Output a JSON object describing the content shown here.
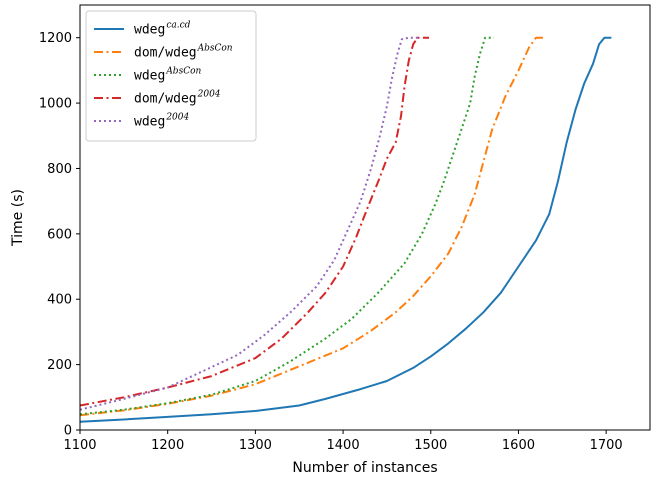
{
  "chart_data": {
    "type": "line",
    "xlabel": "Number of instances",
    "ylabel": "Time (s)",
    "xlim": [
      1100,
      1750
    ],
    "ylim": [
      0,
      1300
    ],
    "xticks": [
      "1100",
      "1200",
      "1300",
      "1400",
      "1500",
      "1600",
      "1700"
    ],
    "yticks": [
      "0",
      "200",
      "400",
      "600",
      "800",
      "1000",
      "1200"
    ],
    "grid": false,
    "legend_position": "top-left",
    "series": [
      {
        "name": "wdeg^{ca.cd}",
        "legend_base": "wdeg",
        "legend_sup": "ca.cd",
        "color": "#1f77b4",
        "style": "solid",
        "points": [
          [
            1100,
            25
          ],
          [
            1150,
            32
          ],
          [
            1200,
            40
          ],
          [
            1250,
            48
          ],
          [
            1300,
            58
          ],
          [
            1350,
            75
          ],
          [
            1380,
            95
          ],
          [
            1420,
            125
          ],
          [
            1450,
            150
          ],
          [
            1480,
            190
          ],
          [
            1500,
            225
          ],
          [
            1520,
            265
          ],
          [
            1540,
            310
          ],
          [
            1560,
            360
          ],
          [
            1580,
            420
          ],
          [
            1600,
            500
          ],
          [
            1620,
            580
          ],
          [
            1635,
            660
          ],
          [
            1645,
            760
          ],
          [
            1655,
            880
          ],
          [
            1665,
            980
          ],
          [
            1675,
            1060
          ],
          [
            1685,
            1120
          ],
          [
            1692,
            1180
          ],
          [
            1698,
            1200
          ],
          [
            1706,
            1200
          ]
        ]
      },
      {
        "name": "dom/wdeg^{AbsCon}",
        "legend_base": "dom/wdeg",
        "legend_sup": "AbsCon",
        "color": "#ff7f0e",
        "style": "dashdot",
        "points": [
          [
            1100,
            45
          ],
          [
            1150,
            60
          ],
          [
            1200,
            80
          ],
          [
            1250,
            105
          ],
          [
            1300,
            140
          ],
          [
            1350,
            195
          ],
          [
            1400,
            250
          ],
          [
            1430,
            300
          ],
          [
            1460,
            360
          ],
          [
            1480,
            410
          ],
          [
            1500,
            470
          ],
          [
            1520,
            540
          ],
          [
            1535,
            620
          ],
          [
            1550,
            720
          ],
          [
            1560,
            820
          ],
          [
            1570,
            920
          ],
          [
            1585,
            1020
          ],
          [
            1600,
            1100
          ],
          [
            1612,
            1170
          ],
          [
            1620,
            1200
          ],
          [
            1630,
            1200
          ]
        ]
      },
      {
        "name": "wdeg^{AbsCon}",
        "legend_base": "wdeg",
        "legend_sup": "AbsCon",
        "color": "#2ca02c",
        "style": "dotted",
        "points": [
          [
            1100,
            48
          ],
          [
            1150,
            62
          ],
          [
            1200,
            82
          ],
          [
            1250,
            108
          ],
          [
            1300,
            150
          ],
          [
            1340,
            210
          ],
          [
            1380,
            280
          ],
          [
            1410,
            340
          ],
          [
            1440,
            420
          ],
          [
            1470,
            510
          ],
          [
            1490,
            600
          ],
          [
            1505,
            690
          ],
          [
            1515,
            760
          ],
          [
            1525,
            840
          ],
          [
            1535,
            920
          ],
          [
            1545,
            1000
          ],
          [
            1550,
            1080
          ],
          [
            1556,
            1150
          ],
          [
            1562,
            1200
          ],
          [
            1572,
            1200
          ]
        ]
      },
      {
        "name": "dom/wdeg^{2004}",
        "legend_base": "dom/wdeg",
        "legend_sup": "2004",
        "color": "#d62728",
        "style": "dashdot",
        "points": [
          [
            1100,
            75
          ],
          [
            1150,
            100
          ],
          [
            1200,
            130
          ],
          [
            1250,
            165
          ],
          [
            1300,
            220
          ],
          [
            1330,
            280
          ],
          [
            1360,
            360
          ],
          [
            1380,
            420
          ],
          [
            1400,
            500
          ],
          [
            1415,
            590
          ],
          [
            1428,
            680
          ],
          [
            1440,
            760
          ],
          [
            1450,
            830
          ],
          [
            1460,
            880
          ],
          [
            1466,
            960
          ],
          [
            1470,
            1050
          ],
          [
            1475,
            1130
          ],
          [
            1480,
            1180
          ],
          [
            1485,
            1200
          ],
          [
            1498,
            1200
          ]
        ]
      },
      {
        "name": "wdeg^{2004}",
        "legend_base": "wdeg",
        "legend_sup": "2004",
        "color": "#9467bd",
        "style": "dotted",
        "points": [
          [
            1100,
            62
          ],
          [
            1150,
            95
          ],
          [
            1200,
            130
          ],
          [
            1240,
            180
          ],
          [
            1280,
            230
          ],
          [
            1310,
            290
          ],
          [
            1340,
            360
          ],
          [
            1370,
            440
          ],
          [
            1390,
            520
          ],
          [
            1405,
            610
          ],
          [
            1420,
            700
          ],
          [
            1432,
            800
          ],
          [
            1442,
            900
          ],
          [
            1450,
            990
          ],
          [
            1456,
            1080
          ],
          [
            1462,
            1150
          ],
          [
            1467,
            1195
          ],
          [
            1475,
            1200
          ],
          [
            1488,
            1200
          ]
        ]
      }
    ]
  }
}
